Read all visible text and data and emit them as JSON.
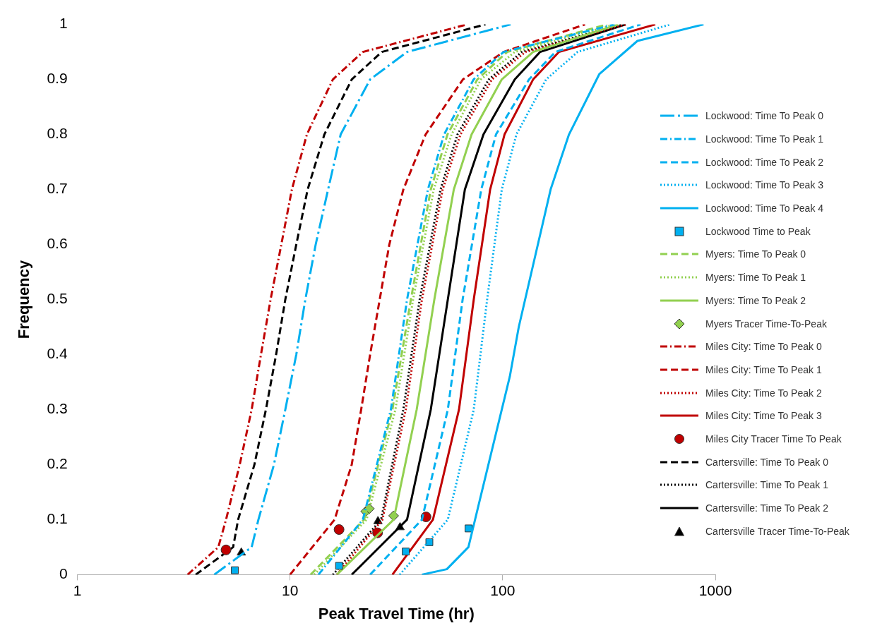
{
  "chart_data": {
    "type": "line",
    "xlabel": "Peak Travel Time (hr)",
    "ylabel": "Frequency",
    "log": "x",
    "xlim": [
      1,
      1000
    ],
    "xticks": [
      1,
      10,
      100,
      1000
    ],
    "ylim": [
      0,
      1
    ],
    "yticks": [
      0,
      0.1,
      0.2,
      0.3,
      0.4,
      0.5,
      0.6,
      0.7,
      0.8,
      0.9,
      1
    ],
    "legend": "right",
    "marker": "none",
    "series": [
      {
        "name": "Lockwood: Time To Peak 0",
        "color": "#00b0f0",
        "line_style": "long-dash-dot",
        "x": [
          4.4,
          6.6,
          7.1,
          8.4,
          9.5,
          10.7,
          11.8,
          13.2,
          15.1,
          17.3,
          23.8,
          35.5,
          109
        ],
        "values": [
          0,
          0.05,
          0.1,
          0.2,
          0.3,
          0.4,
          0.5,
          0.6,
          0.7,
          0.8,
          0.9,
          0.95,
          1
        ]
      },
      {
        "name": "Lockwood: Time To Peak 1",
        "color": "#00b0f0",
        "line_style": "dash-dot",
        "x": [
          13.6,
          22,
          29.8,
          35.5,
          44.5,
          53,
          73,
          101,
          336
        ],
        "values": [
          0,
          0.1,
          0.3,
          0.5,
          0.7,
          0.8,
          0.9,
          0.95,
          1
        ]
      },
      {
        "name": "Lockwood: Time To Peak 2",
        "color": "#00b0f0",
        "line_style": "dashed",
        "x": [
          23.8,
          41.7,
          55.2,
          64.8,
          79.3,
          93,
          133,
          177,
          445
        ],
        "values": [
          0,
          0.1,
          0.3,
          0.5,
          0.7,
          0.8,
          0.9,
          0.95,
          1
        ]
      },
      {
        "name": "Lockwood: Time To Peak 3",
        "color": "#00b0f0",
        "line_style": "dotted",
        "x": [
          32.8,
          55.2,
          73.1,
          84.5,
          99,
          116,
          160,
          225,
          613
        ],
        "values": [
          0,
          0.1,
          0.3,
          0.5,
          0.7,
          0.8,
          0.9,
          0.95,
          1
        ]
      },
      {
        "name": "Lockwood: Time To Peak 4",
        "color": "#00b0f0",
        "line_style": "solid",
        "x": [
          41.7,
          54.6,
          69,
          77.4,
          108,
          119,
          168,
          205,
          285,
          430,
          880
        ],
        "values": [
          0,
          0.01,
          0.05,
          0.13,
          0.36,
          0.45,
          0.7,
          0.8,
          0.91,
          0.97,
          1
        ]
      },
      {
        "name": "Lockwood Time to Peak",
        "type": "scatter",
        "marker": "square",
        "color": "#00b0f0",
        "x": [
          5.5,
          17,
          35,
          45.2,
          69.1
        ],
        "values": [
          0.008,
          0.016,
          0.042,
          0.059,
          0.084
        ]
      },
      {
        "name": "Myers: Time To Peak 0",
        "color": "#92d050",
        "line_style": "dashed",
        "x": [
          12.5,
          22.3,
          30.3,
          37,
          45.9,
          55,
          76,
          105,
          310
        ],
        "values": [
          0,
          0.1,
          0.3,
          0.5,
          0.7,
          0.8,
          0.9,
          0.95,
          1
        ]
      },
      {
        "name": "Myers: Time To Peak 1",
        "color": "#92d050",
        "line_style": "dotted",
        "x": [
          13,
          22.9,
          31.3,
          37.9,
          47.4,
          57.5,
          79,
          114,
          336
        ],
        "values": [
          0,
          0.1,
          0.3,
          0.5,
          0.7,
          0.8,
          0.9,
          0.95,
          1
        ]
      },
      {
        "name": "Myers: Time To Peak 2",
        "color": "#92d050",
        "line_style": "solid",
        "x": [
          16.6,
          30.7,
          39.4,
          47.7,
          58.9,
          71.4,
          99,
          139,
          350
        ],
        "values": [
          0,
          0.1,
          0.3,
          0.5,
          0.7,
          0.8,
          0.9,
          0.95,
          1
        ]
      },
      {
        "name": "Myers Tracer Time-To-Peak",
        "type": "scatter",
        "marker": "diamond",
        "color": "#92d050",
        "x": [
          22.7,
          23.6,
          30.7
        ],
        "values": [
          0.115,
          0.12,
          0.107
        ]
      },
      {
        "name": "Miles City: Time To Peak 0",
        "color": "#c00000",
        "line_style": "dash-dot",
        "x": [
          3.3,
          4.6,
          5,
          5.8,
          6.6,
          7.3,
          8.1,
          9.1,
          10.2,
          12,
          15.9,
          22,
          68
        ],
        "values": [
          0,
          0.05,
          0.1,
          0.2,
          0.3,
          0.4,
          0.5,
          0.6,
          0.7,
          0.8,
          0.9,
          0.95,
          1
        ]
      },
      {
        "name": "Miles City: Time To Peak 1",
        "color": "#c00000",
        "line_style": "dashed",
        "x": [
          10,
          16.2,
          19.5,
          21.6,
          23.8,
          26.4,
          29.3,
          34.1,
          43.4,
          65,
          101,
          244
        ],
        "values": [
          0,
          0.1,
          0.2,
          0.3,
          0.4,
          0.5,
          0.6,
          0.7,
          0.8,
          0.9,
          0.95,
          1
        ]
      },
      {
        "name": "Miles City: Time To Peak 2",
        "color": "#c00000",
        "line_style": "dotted",
        "x": [
          16.6,
          27.2,
          35,
          41.7,
          52.2,
          63.3,
          89,
          128,
          379
        ],
        "values": [
          0,
          0.1,
          0.3,
          0.5,
          0.7,
          0.8,
          0.9,
          0.95,
          1
        ]
      },
      {
        "name": "Miles City: Time To Peak 3",
        "color": "#c00000",
        "line_style": "solid",
        "x": [
          30.3,
          47,
          62.3,
          73.1,
          87.3,
          102,
          139,
          184,
          522
        ],
        "values": [
          0,
          0.1,
          0.3,
          0.5,
          0.7,
          0.8,
          0.9,
          0.95,
          1
        ]
      },
      {
        "name": "Miles City Tracer Time To Peak",
        "type": "scatter",
        "marker": "circle",
        "color": "#c00000",
        "x": [
          5,
          17,
          25.8,
          43.6
        ],
        "values": [
          0.045,
          0.082,
          0.076,
          0.105
        ]
      },
      {
        "name": "Cartersville: Time To Peak 0",
        "color": "#000000",
        "line_style": "dashed",
        "x": [
          3.6,
          5.4,
          5.7,
          6.8,
          7.7,
          8.6,
          9.5,
          10.7,
          12.1,
          14.5,
          19.5,
          27,
          83
        ],
        "values": [
          0,
          0.05,
          0.1,
          0.2,
          0.3,
          0.4,
          0.5,
          0.6,
          0.7,
          0.8,
          0.9,
          0.95,
          1
        ]
      },
      {
        "name": "Cartersville: Time To Peak 1",
        "color": "#000000",
        "line_style": "dotted",
        "x": [
          15.9,
          26.8,
          34.1,
          40.7,
          51,
          61.3,
          86,
          123,
          364
        ],
        "values": [
          0,
          0.1,
          0.3,
          0.5,
          0.7,
          0.8,
          0.9,
          0.95,
          1
        ]
      },
      {
        "name": "Cartersville: Time To Peak 2",
        "color": "#000000",
        "line_style": "solid",
        "x": [
          19.5,
          35.5,
          45.9,
          55.2,
          66.4,
          81.2,
          114,
          150,
          379
        ],
        "values": [
          0,
          0.1,
          0.3,
          0.5,
          0.7,
          0.8,
          0.9,
          0.95,
          1
        ]
      },
      {
        "name": "Cartersville Tracer Time-To-Peak",
        "type": "scatter",
        "marker": "triangle",
        "color": "#000000",
        "x": [
          5.9,
          25.9,
          32.9
        ],
        "values": [
          0.04,
          0.097,
          0.086
        ]
      }
    ]
  }
}
